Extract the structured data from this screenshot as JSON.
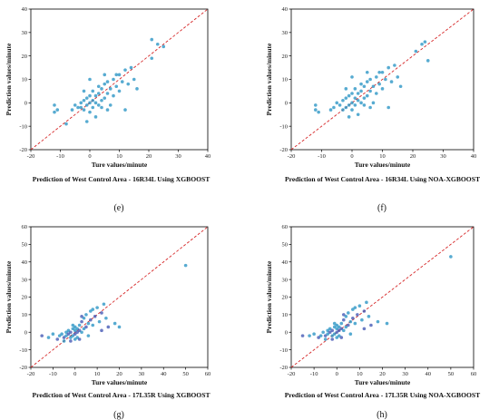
{
  "colors": {
    "points": "#1f8fc2",
    "points_dark": "#3a4fb0",
    "points_light": "#7fd6e0",
    "diagonal": "#d62728",
    "axis": "#000000"
  },
  "chart_data": [
    {
      "type": "scatter",
      "letter": "(e)",
      "caption": "Prediction of West Control Area - 16R34L Using XGBOOST",
      "xlabel": "Ture values/minute",
      "ylabel": "Prediction values/minute",
      "xlim": [
        -20,
        40
      ],
      "ylim": [
        -20,
        40
      ],
      "xticks": [
        "-20",
        "-10",
        "0",
        "10",
        "20",
        "30",
        "40"
      ],
      "yticks": [
        "-20",
        "-10",
        "0",
        "10",
        "20",
        "30",
        "40"
      ],
      "reference_line": "y = x",
      "points": [
        [
          -12,
          -1
        ],
        [
          -12,
          -4
        ],
        [
          -11,
          -3
        ],
        [
          -8,
          -9
        ],
        [
          -6,
          -3
        ],
        [
          -5,
          -1
        ],
        [
          -4,
          -2
        ],
        [
          -3,
          -2
        ],
        [
          -3,
          0
        ],
        [
          -2,
          -3
        ],
        [
          -2,
          1
        ],
        [
          -1,
          -1
        ],
        [
          -1,
          2
        ],
        [
          0,
          -4
        ],
        [
          0,
          0
        ],
        [
          0,
          3
        ],
        [
          1,
          -2
        ],
        [
          1,
          1
        ],
        [
          1,
          5
        ],
        [
          2,
          0
        ],
        [
          2,
          3
        ],
        [
          3,
          -1
        ],
        [
          3,
          4
        ],
        [
          4,
          1
        ],
        [
          4,
          6
        ],
        [
          5,
          2
        ],
        [
          5,
          8
        ],
        [
          6,
          4
        ],
        [
          6,
          -3
        ],
        [
          7,
          6
        ],
        [
          8,
          3
        ],
        [
          8,
          10
        ],
        [
          9,
          7
        ],
        [
          10,
          5
        ],
        [
          10,
          12
        ],
        [
          11,
          9
        ],
        [
          12,
          14
        ],
        [
          13,
          8
        ],
        [
          14,
          15
        ],
        [
          15,
          10
        ],
        [
          16,
          6
        ],
        [
          12,
          -3
        ],
        [
          5,
          12
        ],
        [
          21,
          27
        ],
        [
          23,
          25
        ],
        [
          25,
          24
        ],
        [
          21,
          19
        ],
        [
          -1,
          -8
        ],
        [
          2,
          -6
        ],
        [
          4,
          -2
        ],
        [
          6,
          9
        ],
        [
          7,
          -1
        ],
        [
          9,
          12
        ],
        [
          3,
          7
        ],
        [
          -2,
          5
        ],
        [
          0,
          10
        ]
      ]
    },
    {
      "type": "scatter",
      "letter": "(f)",
      "caption": "Prediction of West Control Area - 16R34L Using NOA-XGBOOST",
      "xlabel": "Ture values/minute",
      "ylabel": "Prediction values/minute",
      "xlim": [
        -20,
        40
      ],
      "ylim": [
        -20,
        40
      ],
      "xticks": [
        "-20",
        "-10",
        "0",
        "10",
        "20",
        "30",
        "40"
      ],
      "yticks": [
        "-20",
        "-10",
        "0",
        "10",
        "20",
        "30",
        "40"
      ],
      "reference_line": "y = x",
      "points": [
        [
          -12,
          -1
        ],
        [
          -12,
          -3
        ],
        [
          -11,
          -4
        ],
        [
          -7,
          -3
        ],
        [
          -6,
          -2
        ],
        [
          -5,
          0
        ],
        [
          -4,
          -1
        ],
        [
          -3,
          -3
        ],
        [
          -3,
          1
        ],
        [
          -2,
          -2
        ],
        [
          -2,
          2
        ],
        [
          -1,
          -1
        ],
        [
          -1,
          3
        ],
        [
          0,
          -3
        ],
        [
          0,
          0
        ],
        [
          0,
          4
        ],
        [
          1,
          -1
        ],
        [
          1,
          2
        ],
        [
          1,
          6
        ],
        [
          2,
          1
        ],
        [
          2,
          4
        ],
        [
          3,
          0
        ],
        [
          3,
          5
        ],
        [
          4,
          2
        ],
        [
          4,
          7
        ],
        [
          5,
          3
        ],
        [
          5,
          9
        ],
        [
          6,
          5
        ],
        [
          6,
          -2
        ],
        [
          7,
          7
        ],
        [
          8,
          4
        ],
        [
          8,
          11
        ],
        [
          9,
          8
        ],
        [
          10,
          6
        ],
        [
          10,
          13
        ],
        [
          11,
          10
        ],
        [
          12,
          15
        ],
        [
          13,
          9
        ],
        [
          14,
          16
        ],
        [
          15,
          11
        ],
        [
          16,
          7
        ],
        [
          12,
          -2
        ],
        [
          5,
          13
        ],
        [
          21,
          22
        ],
        [
          23,
          25
        ],
        [
          24,
          26
        ],
        [
          25,
          18
        ],
        [
          -1,
          -6
        ],
        [
          2,
          -5
        ],
        [
          4,
          -1
        ],
        [
          6,
          10
        ],
        [
          7,
          0
        ],
        [
          9,
          13
        ],
        [
          3,
          8
        ],
        [
          -2,
          6
        ],
        [
          0,
          11
        ]
      ]
    },
    {
      "type": "scatter",
      "letter": "(g)",
      "caption": "Prediction of West Control Area - 17L35R Using XGBOOST",
      "xlabel": "Ture values/minute",
      "ylabel": "Prediction values/minute",
      "xlim": [
        -20,
        60
      ],
      "ylim": [
        -20,
        60
      ],
      "xticks": [
        "-20",
        "-10",
        "0",
        "10",
        "20",
        "30",
        "40",
        "50",
        "60"
      ],
      "yticks": [
        "-20",
        "-10",
        "0",
        "10",
        "20",
        "30",
        "40",
        "50",
        "60"
      ],
      "reference_line": "y = x",
      "points": [
        [
          -15,
          -2
        ],
        [
          -12,
          -3
        ],
        [
          -10,
          -1
        ],
        [
          -8,
          -4
        ],
        [
          -7,
          -2
        ],
        [
          -6,
          -1
        ],
        [
          -5,
          -3
        ],
        [
          -4,
          0
        ],
        [
          -4,
          -2
        ],
        [
          -3,
          -1
        ],
        [
          -3,
          1
        ],
        [
          -2,
          -3
        ],
        [
          -2,
          0
        ],
        [
          -1,
          -2
        ],
        [
          -1,
          2
        ],
        [
          0,
          -1
        ],
        [
          0,
          1
        ],
        [
          0,
          3
        ],
        [
          1,
          0
        ],
        [
          1,
          2
        ],
        [
          1,
          -3
        ],
        [
          2,
          1
        ],
        [
          2,
          4
        ],
        [
          3,
          0
        ],
        [
          3,
          6
        ],
        [
          4,
          2
        ],
        [
          4,
          8
        ],
        [
          5,
          3
        ],
        [
          5,
          10
        ],
        [
          6,
          5
        ],
        [
          7,
          7
        ],
        [
          7,
          12
        ],
        [
          8,
          4
        ],
        [
          9,
          9
        ],
        [
          10,
          14
        ],
        [
          11,
          6
        ],
        [
          12,
          11
        ],
        [
          13,
          16
        ],
        [
          14,
          8
        ],
        [
          15,
          3
        ],
        [
          18,
          5
        ],
        [
          20,
          3
        ],
        [
          12,
          1
        ],
        [
          50,
          38
        ],
        [
          -5,
          -5
        ],
        [
          2,
          -4
        ],
        [
          6,
          -2
        ],
        [
          8,
          13
        ],
        [
          3,
          9
        ],
        [
          -1,
          4
        ],
        [
          0,
          -4
        ],
        [
          -2,
          -5
        ]
      ]
    },
    {
      "type": "scatter",
      "letter": "(h)",
      "caption": "Prediction of West Control Area - 17L35R Using NOA-XGBOOST",
      "xlabel": "Ture values/minute",
      "ylabel": "Prediction values/minute",
      "xlim": [
        -20,
        60
      ],
      "ylim": [
        -20,
        60
      ],
      "xticks": [
        "-20",
        "-10",
        "0",
        "10",
        "20",
        "30",
        "40",
        "50",
        "60"
      ],
      "yticks": [
        "-20",
        "-10",
        "0",
        "10",
        "20",
        "30",
        "40",
        "50",
        "60"
      ],
      "reference_line": "y = x",
      "points": [
        [
          -15,
          -2
        ],
        [
          -12,
          -2
        ],
        [
          -10,
          -1
        ],
        [
          -8,
          -3
        ],
        [
          -7,
          -2
        ],
        [
          -6,
          0
        ],
        [
          -5,
          -2
        ],
        [
          -4,
          1
        ],
        [
          -4,
          -1
        ],
        [
          -3,
          0
        ],
        [
          -3,
          2
        ],
        [
          -2,
          -2
        ],
        [
          -2,
          1
        ],
        [
          -1,
          -1
        ],
        [
          -1,
          3
        ],
        [
          0,
          0
        ],
        [
          0,
          2
        ],
        [
          0,
          4
        ],
        [
          1,
          1
        ],
        [
          1,
          3
        ],
        [
          1,
          -2
        ],
        [
          2,
          2
        ],
        [
          2,
          5
        ],
        [
          3,
          1
        ],
        [
          3,
          7
        ],
        [
          4,
          3
        ],
        [
          4,
          9
        ],
        [
          5,
          4
        ],
        [
          5,
          11
        ],
        [
          6,
          6
        ],
        [
          7,
          8
        ],
        [
          7,
          13
        ],
        [
          8,
          5
        ],
        [
          9,
          10
        ],
        [
          10,
          15
        ],
        [
          11,
          7
        ],
        [
          12,
          12
        ],
        [
          13,
          17
        ],
        [
          14,
          9
        ],
        [
          15,
          4
        ],
        [
          18,
          6
        ],
        [
          22,
          5
        ],
        [
          12,
          2
        ],
        [
          50,
          43
        ],
        [
          -5,
          -4
        ],
        [
          2,
          -3
        ],
        [
          6,
          -1
        ],
        [
          8,
          14
        ],
        [
          3,
          10
        ],
        [
          -1,
          5
        ],
        [
          0,
          -3
        ],
        [
          -2,
          -4
        ]
      ]
    }
  ]
}
